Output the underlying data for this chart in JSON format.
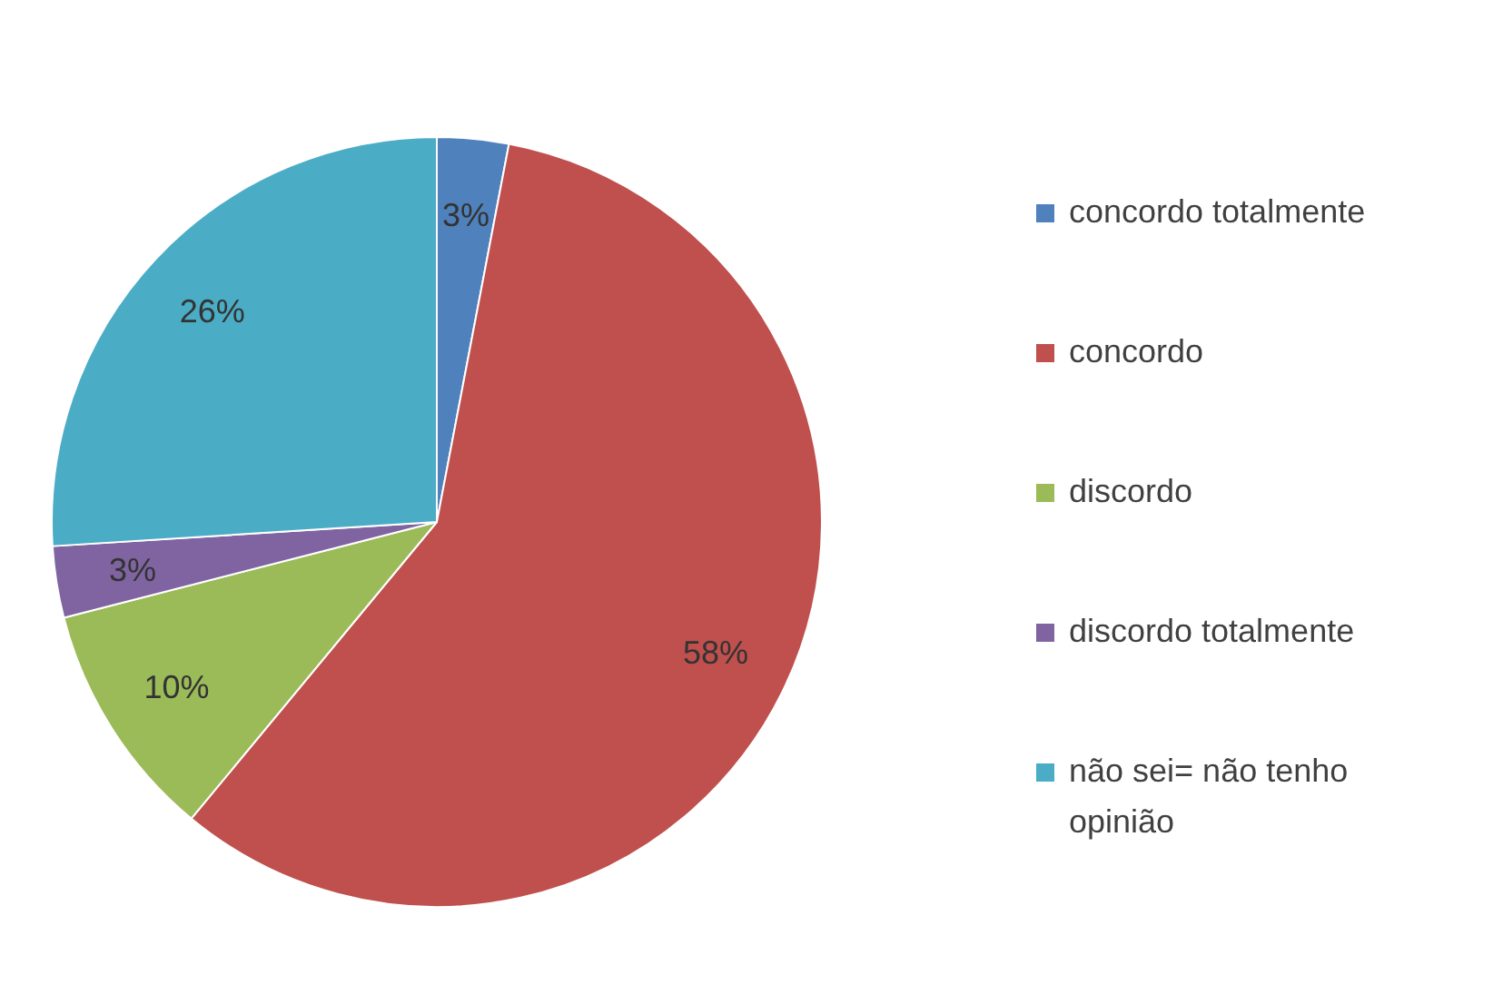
{
  "chart_data": {
    "type": "pie",
    "categories": [
      "concordo totalmente",
      "concordo",
      "discordo",
      "discordo totalmente",
      "não sei= não tenho opinião"
    ],
    "values": [
      3,
      58,
      10,
      3,
      26
    ],
    "colors": [
      "#4f81bd",
      "#c0504d",
      "#9bbb59",
      "#8064a2",
      "#4bacc6"
    ],
    "value_labels": [
      "3%",
      "58%",
      "10%",
      "3%",
      "26%"
    ],
    "legend": "right"
  }
}
